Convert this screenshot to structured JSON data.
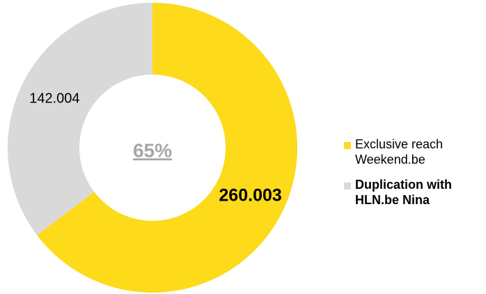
{
  "chart_data": {
    "type": "donut",
    "categories": [
      "Exclusive reach Weekend.be",
      "Duplication with HLN.be Nina"
    ],
    "values": [
      260003,
      142004
    ],
    "value_labels": [
      "260.003",
      "142.004"
    ],
    "colors": [
      "#fdda1a",
      "#d9d9d9"
    ],
    "center_label": "65%"
  }
}
